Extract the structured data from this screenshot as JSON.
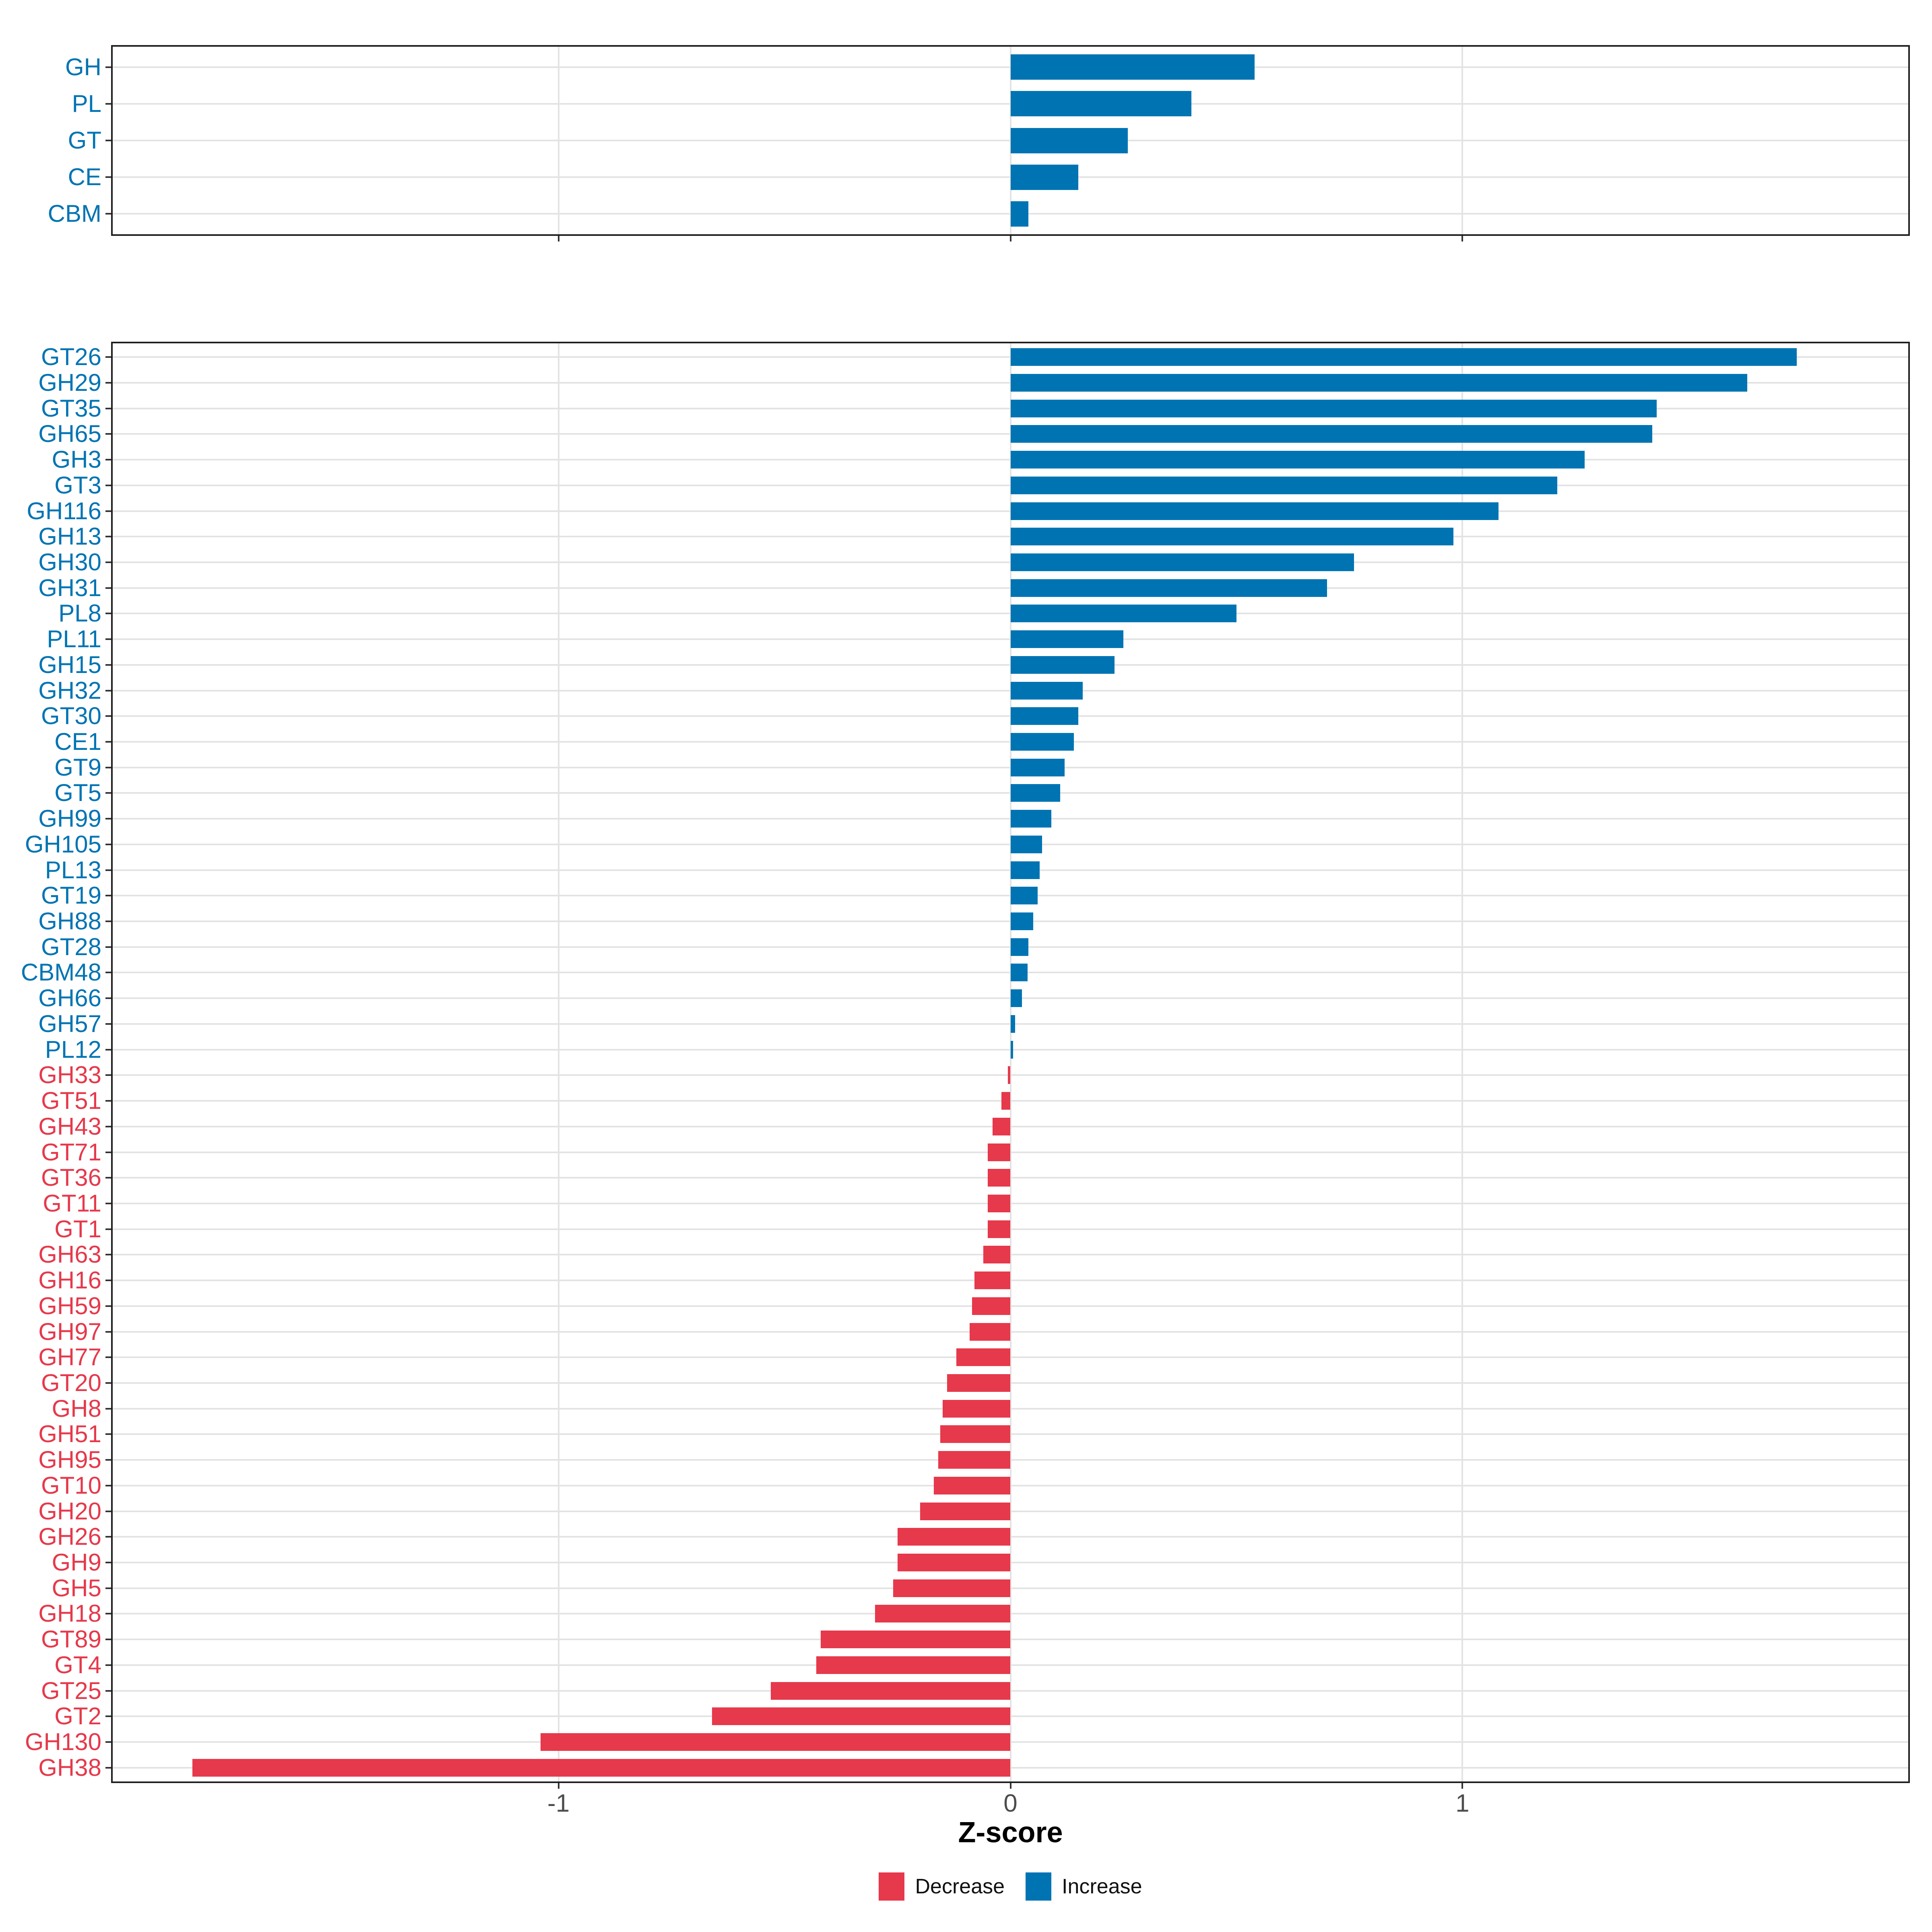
{
  "figure": {
    "background": "#ffffff"
  },
  "axis": {
    "title": "Z-score",
    "tick_labels": [
      "-1",
      "0",
      "1"
    ],
    "tick_values": [
      -1,
      0,
      1
    ]
  },
  "legend": {
    "items": [
      {
        "label": "Decrease",
        "color": "#e6394b"
      },
      {
        "label": "Increase",
        "color": "#0074b3"
      }
    ]
  },
  "colors": {
    "increase": "#0074b3",
    "decrease": "#e6394b",
    "grid": "#e3e3e3",
    "border": "#1f1f1f",
    "tick": "#333333",
    "axis_text": "#4d4d4d",
    "axis_title": "#000000"
  },
  "chart_data": {
    "type": "bar",
    "orientation": "horizontal",
    "title": "",
    "xlabel": "Z-score",
    "ylabel": "",
    "xlim": [
      -1.99,
      1.99
    ],
    "x_ticks": [
      -1,
      0,
      1
    ],
    "grid": "major-only",
    "legend_position": "bottom",
    "series_rule": "values >= 0 are Increase (blue), values < 0 are Decrease (red)",
    "panels": [
      {
        "name": "enzyme-class-summary",
        "categories": [
          "GH",
          "PL",
          "GT",
          "CE",
          "CBM"
        ],
        "values": [
          0.54,
          0.4,
          0.26,
          0.15,
          0.04
        ]
      },
      {
        "name": "enzyme-families",
        "categories": [
          "GT26",
          "GH29",
          "GT35",
          "GH65",
          "GH3",
          "GT3",
          "GH116",
          "GH13",
          "GH30",
          "GH31",
          "PL8",
          "PL11",
          "GH15",
          "GH32",
          "GT30",
          "CE1",
          "GT9",
          "GT5",
          "GH99",
          "GH105",
          "PL13",
          "GT19",
          "GH88",
          "GT28",
          "CBM48",
          "GH66",
          "GH57",
          "PL12",
          "GH33",
          "GT51",
          "GH43",
          "GT71",
          "GT36",
          "GT11",
          "GT1",
          "GH63",
          "GH16",
          "GH59",
          "GH97",
          "GH77",
          "GT20",
          "GH8",
          "GH51",
          "GH95",
          "GT10",
          "GH20",
          "GH26",
          "GH9",
          "GH5",
          "GH18",
          "GT89",
          "GT4",
          "GT25",
          "GT2",
          "GH130",
          "GH38"
        ],
        "values": [
          1.74,
          1.63,
          1.43,
          1.42,
          1.27,
          1.21,
          1.08,
          0.98,
          0.76,
          0.7,
          0.5,
          0.25,
          0.23,
          0.16,
          0.15,
          0.14,
          0.12,
          0.11,
          0.09,
          0.07,
          0.065,
          0.06,
          0.05,
          0.04,
          0.038,
          0.025,
          0.01,
          0.006,
          -0.006,
          -0.02,
          -0.04,
          -0.05,
          -0.05,
          -0.05,
          -0.05,
          -0.06,
          -0.08,
          -0.085,
          -0.09,
          -0.12,
          -0.14,
          -0.15,
          -0.155,
          -0.16,
          -0.17,
          -0.2,
          -0.25,
          -0.25,
          -0.26,
          -0.3,
          -0.42,
          -0.43,
          -0.53,
          -0.66,
          -1.04,
          -1.81
        ]
      }
    ]
  }
}
